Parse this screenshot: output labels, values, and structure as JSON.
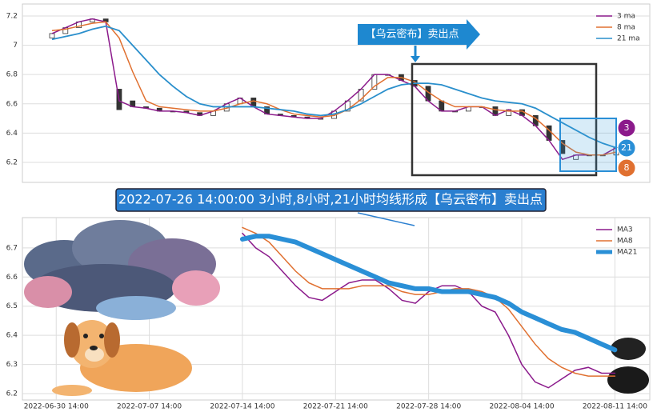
{
  "chart_data": [
    {
      "type": "candlestick-ma",
      "annotations": [
        "【乌云密布】卖出点",
        "3",
        "21",
        "8",
        "2022-07-26 14:00:00 3小时,8小时,21小时均线形成【乌云密布】卖出点"
      ],
      "ylim": [
        6.063,
        7.282
      ],
      "yticks": [
        6.2,
        6.4,
        6.6,
        6.8,
        7.0,
        7.2
      ],
      "grid": true,
      "legend": "upper right",
      "candles": {
        "open": [
          7.05,
          7.08,
          7.12,
          7.16,
          7.18,
          6.7,
          6.62,
          6.58,
          6.57,
          6.55,
          6.55,
          6.54,
          6.52,
          6.55,
          6.6,
          6.64,
          6.58,
          6.53,
          6.52,
          6.51,
          6.5,
          6.5,
          6.55,
          6.62,
          6.7,
          6.8,
          6.8,
          6.76,
          6.72,
          6.62,
          6.55,
          6.55,
          6.58,
          6.58,
          6.52,
          6.56,
          6.52,
          6.45,
          6.35,
          6.22,
          6.25,
          6.25,
          6.25
        ],
        "close": [
          7.08,
          7.12,
          7.16,
          7.18,
          7.16,
          6.56,
          6.58,
          6.57,
          6.55,
          6.55,
          6.54,
          6.52,
          6.55,
          6.6,
          6.64,
          6.58,
          6.53,
          6.52,
          6.51,
          6.5,
          6.5,
          6.55,
          6.62,
          6.7,
          6.8,
          6.8,
          6.76,
          6.72,
          6.62,
          6.55,
          6.55,
          6.58,
          6.58,
          6.52,
          6.56,
          6.52,
          6.45,
          6.35,
          6.26,
          6.25,
          6.25,
          6.25,
          6.3
        ]
      },
      "series": [
        {
          "name": "3 ma",
          "color": "#8b1a8b",
          "values": [
            7.08,
            7.12,
            7.16,
            7.18,
            7.16,
            6.62,
            6.58,
            6.57,
            6.55,
            6.55,
            6.54,
            6.52,
            6.55,
            6.6,
            6.64,
            6.58,
            6.53,
            6.52,
            6.51,
            6.5,
            6.5,
            6.55,
            6.62,
            6.7,
            6.8,
            6.8,
            6.76,
            6.72,
            6.62,
            6.55,
            6.55,
            6.58,
            6.58,
            6.52,
            6.56,
            6.52,
            6.45,
            6.35,
            6.22,
            6.25,
            6.25,
            6.25,
            6.3
          ]
        },
        {
          "name": "8 ma",
          "color": "#e07030",
          "values": [
            7.1,
            7.11,
            7.13,
            7.15,
            7.16,
            7.05,
            6.82,
            6.62,
            6.58,
            6.57,
            6.56,
            6.55,
            6.55,
            6.57,
            6.6,
            6.62,
            6.6,
            6.56,
            6.53,
            6.52,
            6.51,
            6.52,
            6.56,
            6.63,
            6.72,
            6.78,
            6.78,
            6.75,
            6.68,
            6.62,
            6.58,
            6.58,
            6.58,
            6.56,
            6.55,
            6.55,
            6.5,
            6.42,
            6.33,
            6.27,
            6.25,
            6.25,
            6.27
          ]
        },
        {
          "name": "21 ma",
          "color": "#2a8fcc",
          "values": [
            7.04,
            7.06,
            7.08,
            7.11,
            7.13,
            7.1,
            7.0,
            6.9,
            6.8,
            6.72,
            6.65,
            6.6,
            6.58,
            6.58,
            6.58,
            6.58,
            6.57,
            6.56,
            6.55,
            6.53,
            6.52,
            6.53,
            6.56,
            6.6,
            6.65,
            6.7,
            6.73,
            6.74,
            6.74,
            6.73,
            6.7,
            6.67,
            6.64,
            6.62,
            6.61,
            6.6,
            6.57,
            6.52,
            6.47,
            6.42,
            6.37,
            6.33,
            6.3
          ]
        }
      ]
    },
    {
      "type": "line",
      "xlim": [
        "2022-06-28 01:00",
        "2022-08-14 05:00"
      ],
      "xticks": [
        "2022-06-30 14:00",
        "2022-07-07 14:00",
        "2022-07-14 14:00",
        "2022-07-21 14:00",
        "2022-07-28 14:00",
        "2022-08-04 14:00",
        "2022-08-11 14:00"
      ],
      "ylim": [
        6.178,
        6.804
      ],
      "yticks": [
        6.2,
        6.3,
        6.4,
        6.5,
        6.6,
        6.7
      ],
      "grid": true,
      "legend": "upper right",
      "x": [
        "2022-07-14 14:00",
        "2022-07-15 14:00",
        "2022-07-16 14:00",
        "2022-07-17 14:00",
        "2022-07-18 14:00",
        "2022-07-19 14:00",
        "2022-07-20 14:00",
        "2022-07-21 14:00",
        "2022-07-22 14:00",
        "2022-07-23 14:00",
        "2022-07-24 14:00",
        "2022-07-25 14:00",
        "2022-07-26 14:00",
        "2022-07-27 14:00",
        "2022-07-28 14:00",
        "2022-07-29 14:00",
        "2022-07-30 14:00",
        "2022-07-31 14:00",
        "2022-08-01 14:00",
        "2022-08-02 14:00",
        "2022-08-03 14:00",
        "2022-08-04 14:00",
        "2022-08-05 14:00",
        "2022-08-06 14:00",
        "2022-08-07 14:00",
        "2022-08-08 14:00",
        "2022-08-09 14:00",
        "2022-08-10 14:00",
        "2022-08-11 14:00"
      ],
      "series": [
        {
          "name": "MA3",
          "color": "#8b1a8b",
          "values": [
            6.75,
            6.7,
            6.67,
            6.62,
            6.57,
            6.53,
            6.52,
            6.55,
            6.58,
            6.59,
            6.59,
            6.56,
            6.52,
            6.51,
            6.55,
            6.57,
            6.57,
            6.55,
            6.5,
            6.48,
            6.4,
            6.3,
            6.24,
            6.22,
            6.25,
            6.28,
            6.29,
            6.27,
            6.27
          ]
        },
        {
          "name": "MA8",
          "color": "#e07030",
          "values": [
            6.77,
            6.75,
            6.72,
            6.67,
            6.62,
            6.58,
            6.56,
            6.56,
            6.56,
            6.57,
            6.57,
            6.57,
            6.55,
            6.54,
            6.54,
            6.55,
            6.56,
            6.56,
            6.55,
            6.53,
            6.49,
            6.43,
            6.37,
            6.32,
            6.29,
            6.27,
            6.26,
            6.26,
            6.26
          ]
        },
        {
          "name": "MA21",
          "color": "#2a8fd6",
          "values": [
            6.73,
            6.74,
            6.74,
            6.73,
            6.72,
            6.7,
            6.68,
            6.66,
            6.64,
            6.62,
            6.6,
            6.58,
            6.57,
            6.56,
            6.56,
            6.55,
            6.55,
            6.55,
            6.54,
            6.53,
            6.51,
            6.48,
            6.46,
            6.44,
            6.42,
            6.41,
            6.39,
            6.37,
            6.35
          ]
        }
      ]
    }
  ]
}
